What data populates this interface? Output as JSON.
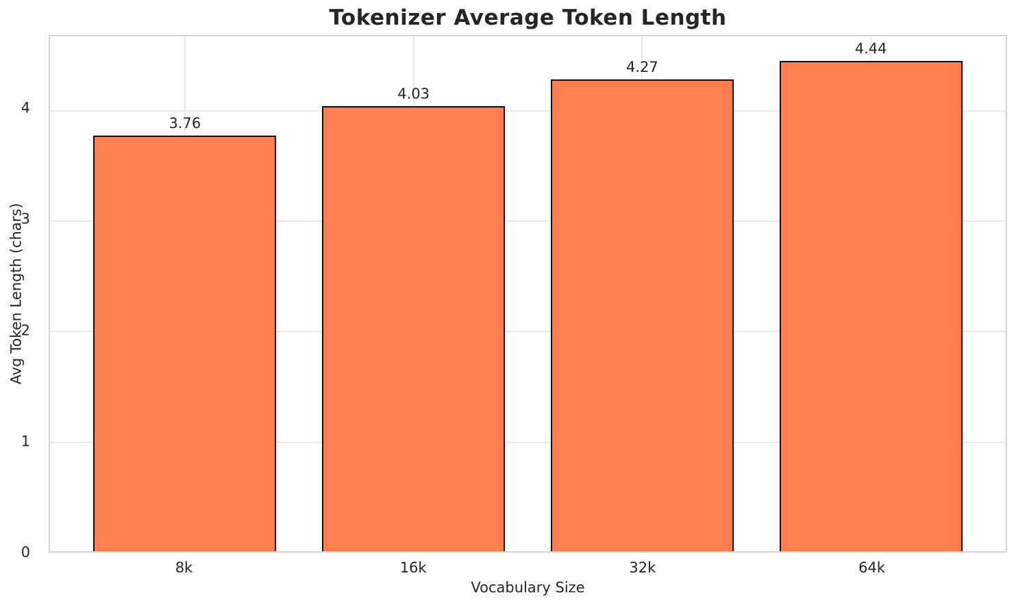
{
  "chart_data": {
    "type": "bar",
    "title": "Tokenizer Average Token Length",
    "xlabel": "Vocabulary Size",
    "ylabel": "Avg Token Length (chars)",
    "categories": [
      "8k",
      "16k",
      "32k",
      "64k"
    ],
    "values": [
      3.76,
      4.03,
      4.27,
      4.44
    ],
    "value_labels": [
      "3.76",
      "4.03",
      "4.27",
      "4.44"
    ],
    "yticks": [
      0,
      1,
      2,
      3,
      4
    ],
    "ytick_labels": [
      "0",
      "1",
      "2",
      "3",
      "4"
    ],
    "ylim": [
      0,
      4.66
    ],
    "bar_width": 0.8,
    "x_margin": 0.05,
    "grid": true,
    "legend": false
  },
  "colors": {
    "bar_fill": "#FF7F50",
    "bar_edge": "#0d0d0d",
    "grid": "#e9e9e9",
    "spine": "#d5d5d5",
    "text": "#262626",
    "background": "#ffffff"
  }
}
